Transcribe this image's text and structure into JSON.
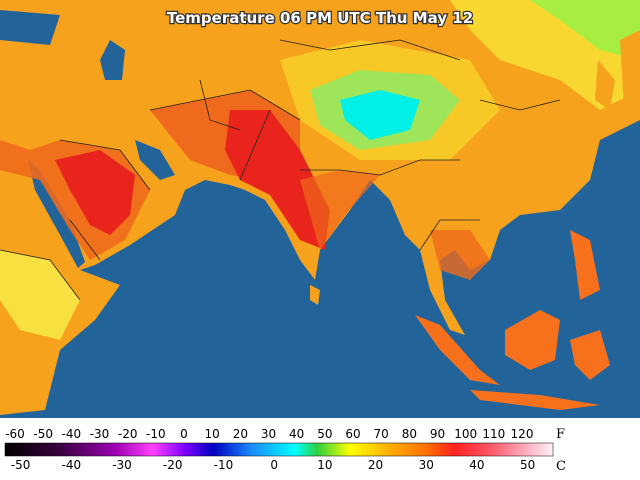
{
  "title": "Temperature 06 PM UTC Thu May 12",
  "fahrenheit": {
    "unit": "F",
    "labels": [
      -60,
      -50,
      -40,
      -30,
      -20,
      -10,
      0,
      10,
      20,
      30,
      40,
      50,
      60,
      70,
      80,
      90,
      100,
      110,
      120
    ]
  },
  "celsius": {
    "unit": "C",
    "labels": [
      -50,
      -40,
      -30,
      -20,
      -10,
      0,
      10,
      20,
      30,
      40,
      50
    ]
  }
}
